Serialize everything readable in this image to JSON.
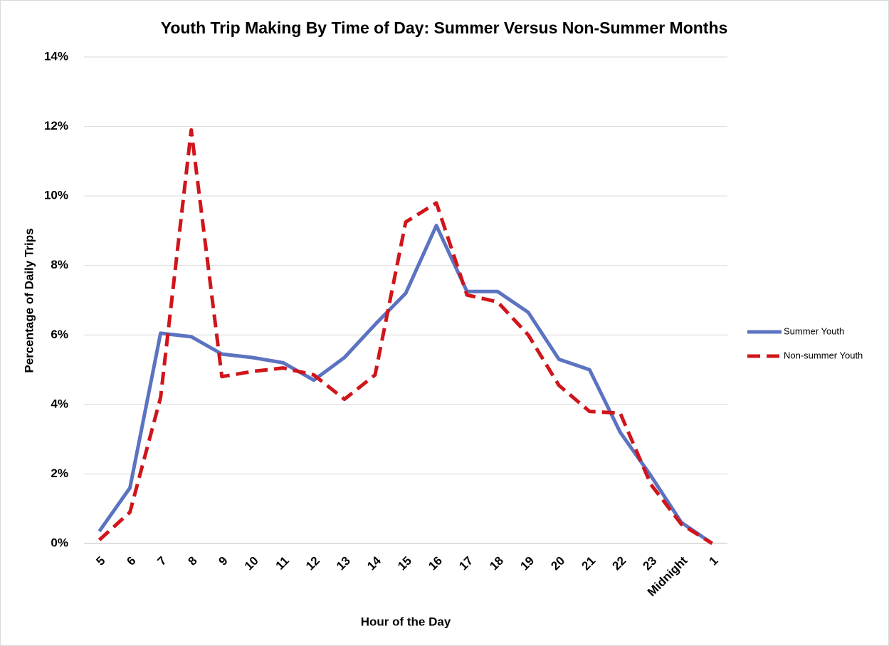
{
  "chart_data": {
    "type": "line",
    "title": "Youth Trip Making By Time of Day: Summer Versus Non-Summer Months",
    "x_label": "Hour of the Day",
    "y_label": "Percentage of Daily Trips",
    "categories": [
      "5",
      "6",
      "7",
      "8",
      "9",
      "10",
      "11",
      "12",
      "13",
      "14",
      "15",
      "16",
      "17",
      "18",
      "19",
      "20",
      "21",
      "22",
      "23",
      "Midnight",
      "1"
    ],
    "series": [
      {
        "name": "Summer Youth",
        "color": "#5b73c0",
        "dash": false,
        "values": [
          0.35,
          1.6,
          6.05,
          5.95,
          5.45,
          5.35,
          5.2,
          4.7,
          5.35,
          6.3,
          7.2,
          9.15,
          7.25,
          7.25,
          6.65,
          5.3,
          5.0,
          3.2,
          1.95,
          0.6,
          0
        ]
      },
      {
        "name": "Non-summer Youth",
        "color": "#d0151b",
        "dash": true,
        "values": [
          0.1,
          0.9,
          4.2,
          11.9,
          4.8,
          4.95,
          5.05,
          4.85,
          4.15,
          4.85,
          9.25,
          9.8,
          7.15,
          6.95,
          6.0,
          4.55,
          3.8,
          3.75,
          1.7,
          0.55,
          0
        ]
      }
    ],
    "ylim": [
      0,
      14
    ],
    "yticks": [
      {
        "value": 0,
        "label": "0%"
      },
      {
        "value": 2,
        "label": "2%"
      },
      {
        "value": 4,
        "label": "4%"
      },
      {
        "value": 6,
        "label": "6%"
      },
      {
        "value": 8,
        "label": "8%"
      },
      {
        "value": 10,
        "label": "10%"
      },
      {
        "value": 12,
        "label": "12%"
      },
      {
        "value": 14,
        "label": "14%"
      }
    ],
    "grid": true,
    "legend": "right"
  }
}
